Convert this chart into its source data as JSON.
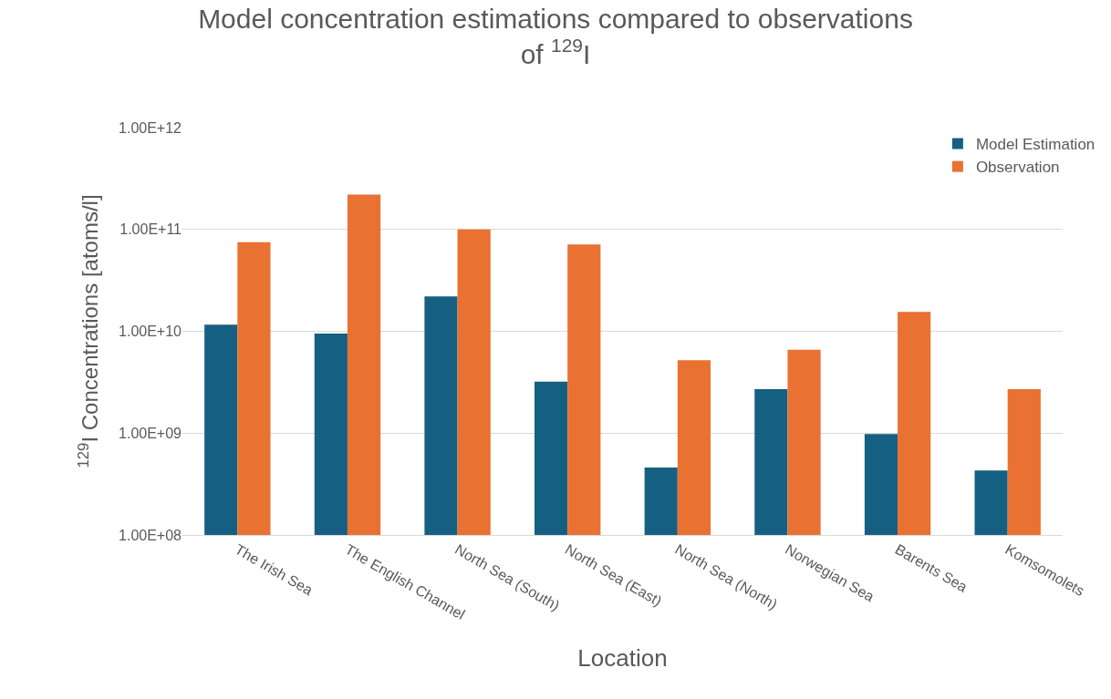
{
  "chart_data": {
    "type": "bar",
    "title": "Model concentration estimations compared to observations\nof $^{129}$I",
    "xlabel": "Location",
    "ylabel": "$^{129}$I Concentrations [atoms/l]",
    "categories": [
      "The Irish Sea",
      "The English Channel",
      "North Sea (South)",
      "North Sea (East)",
      "North Sea (North)",
      "Norwegian Sea",
      "Barents Sea",
      "Komsomolets"
    ],
    "series": [
      {
        "name": "Model Estimation",
        "color": "#156082",
        "values": [
          11600000000.0,
          9500000000.0,
          22000000000.0,
          3200000000.0,
          460000000.0,
          2700000000.0,
          980000000.0,
          430000000.0
        ]
      },
      {
        "name": "Observation",
        "color": "#e97132",
        "values": [
          75000000000.0,
          220000000000.0,
          100000000000.0,
          71000000000.0,
          5200000000.0,
          6600000000.0,
          15500000000.0,
          2700000000.0
        ]
      }
    ],
    "log": true,
    "ylim": [
      100000000.0,
      1000000000000.0
    ],
    "yticks": [
      {
        "value": 100000000.0,
        "label": "1.00E+08"
      },
      {
        "value": 1000000000.0,
        "label": "1.00E+09"
      },
      {
        "value": 10000000000.0,
        "label": "1.00E+10"
      },
      {
        "value": 100000000000.0,
        "label": "1.00E+11"
      },
      {
        "value": 1000000000000.0,
        "label": "1.00E+12"
      }
    ],
    "grid": "y",
    "legend": "top right"
  }
}
